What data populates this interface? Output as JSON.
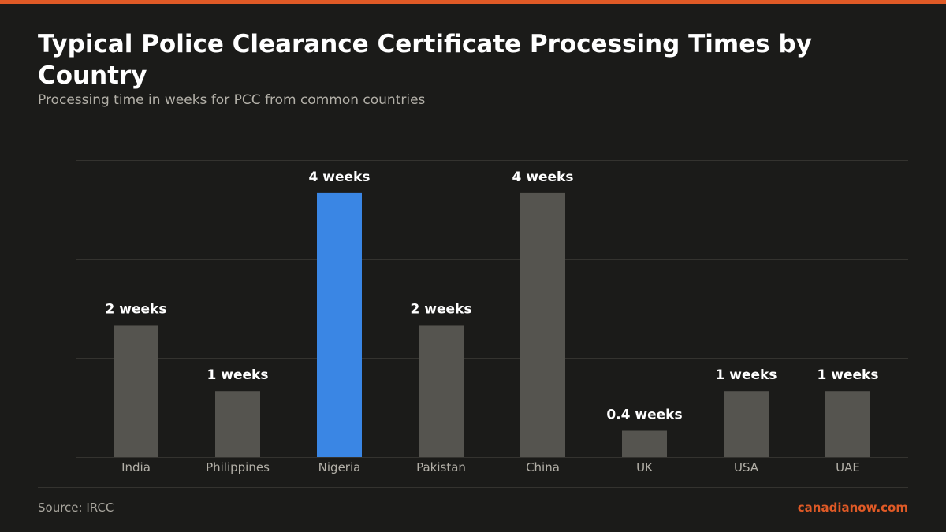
{
  "header": {
    "title": "Typical Police Clearance Certificate Processing Times by Country",
    "subtitle": "Processing time in weeks for PCC from common countries"
  },
  "footer": {
    "source": "Source: IRCC",
    "brand": "canadianow.com"
  },
  "colors": {
    "background": "#1b1b19",
    "accent": "#e05a26",
    "bar_default": "#55544f",
    "bar_highlight": "#3a86e4",
    "gridline": "#34332f",
    "value_label": "#ffffff",
    "tick_label": "#b3b0a8"
  },
  "chart_data": {
    "type": "bar",
    "categories": [
      "India",
      "Philippines",
      "Nigeria",
      "Pakistan",
      "China",
      "UK",
      "USA",
      "UAE"
    ],
    "values": [
      2,
      1,
      4,
      2,
      4,
      0.4,
      1,
      1
    ],
    "value_labels": [
      "2 weeks",
      "1 weeks",
      "4 weeks",
      "2 weeks",
      "4 weeks",
      "0.4 weeks",
      "1 weeks",
      "1 weeks"
    ],
    "highlight_category": "Nigeria",
    "ylim": [
      0,
      4.5
    ],
    "gridlines": [
      0,
      1.5,
      3,
      4.5
    ],
    "grid": true,
    "legend": "none",
    "xlabel": "",
    "ylabel": ""
  }
}
